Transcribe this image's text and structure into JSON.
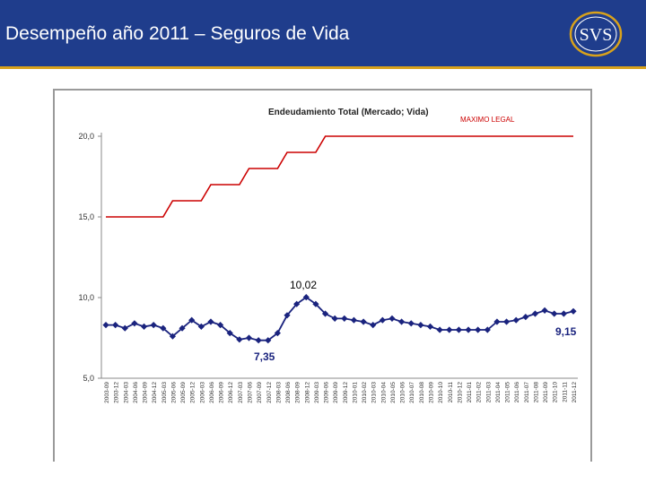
{
  "header": {
    "title": "Desempeño año 2011 – Seguros de Vida",
    "logo_text": "SVS"
  },
  "colors": {
    "header_bg": "#1f3d8c",
    "accent_gold": "#d9a21b",
    "series_limit": "#cc0000",
    "series_debt": "#1a237e"
  },
  "chart_data": {
    "type": "line",
    "title": "Endeudamiento Total (Mercado; Vida)",
    "xlabel": "",
    "ylabel": "",
    "ylim": [
      5.0,
      20.0
    ],
    "yticks": [
      "5,0",
      "10,0",
      "15,0",
      "20,0"
    ],
    "categories": [
      "2003-09",
      "2003-12",
      "2004-03",
      "2004-06",
      "2004-09",
      "2004-12",
      "2005-03",
      "2005-06",
      "2005-09",
      "2005-12",
      "2006-03",
      "2006-06",
      "2006-09",
      "2006-12",
      "2007-03",
      "2007-06",
      "2007-09",
      "2007-12",
      "2008-03",
      "2008-06",
      "2008-09",
      "2008-12",
      "2009-03",
      "2009-06",
      "2009-09",
      "2009-12",
      "2010-01",
      "2010-02",
      "2010-03",
      "2010-04",
      "2010-05",
      "2010-06",
      "2010-07",
      "2010-08",
      "2010-09",
      "2010-10",
      "2010-11",
      "2010-12",
      "2011-01",
      "2011-02",
      "2011-03",
      "2011-04",
      "2011-05",
      "2011-06",
      "2011-07",
      "2011-08",
      "2011-09",
      "2011-10",
      "2011-11",
      "2011-12"
    ],
    "series": [
      {
        "name": "MAXIMO LEGAL",
        "values": [
          15,
          15,
          15,
          15,
          15,
          15,
          15,
          16,
          16,
          16,
          16,
          17,
          17,
          17,
          17,
          18,
          18,
          18,
          18,
          19,
          19,
          19,
          19,
          20,
          20,
          20,
          20,
          20,
          20,
          20,
          20,
          20,
          20,
          20,
          20,
          20,
          20,
          20,
          20,
          20,
          20,
          20,
          20,
          20,
          20,
          20,
          20,
          20,
          20,
          20
        ]
      },
      {
        "name": "Endeudamiento Total",
        "values": [
          8.3,
          8.3,
          8.1,
          8.4,
          8.2,
          8.3,
          8.1,
          7.6,
          8.1,
          8.6,
          8.2,
          8.5,
          8.3,
          7.8,
          7.4,
          7.5,
          7.35,
          7.35,
          7.8,
          8.9,
          9.6,
          10.02,
          9.6,
          9.0,
          8.7,
          8.7,
          8.6,
          8.5,
          8.3,
          8.6,
          8.7,
          8.5,
          8.4,
          8.3,
          8.2,
          8.0,
          8.0,
          8.0,
          8.0,
          8.0,
          8.0,
          8.5,
          8.5,
          8.6,
          8.8,
          9.0,
          9.2,
          9.0,
          9.0,
          9.15
        ]
      }
    ],
    "annotations": {
      "max_label": "10,02",
      "min_label": "7,35",
      "last_label": "9,15"
    }
  }
}
